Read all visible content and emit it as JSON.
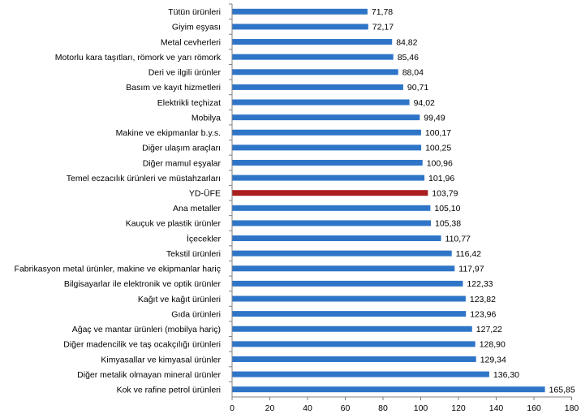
{
  "chart_data": {
    "type": "bar",
    "orientation": "horizontal",
    "categories": [
      "Tütün ürünleri",
      "Giyim eşyası",
      "Metal cevherleri",
      "Motorlu kara taşıtları, römork ve yarı römork",
      "Deri ve ilgili ürünler",
      "Basım ve kayıt hizmetleri",
      "Elektrikli teçhizat",
      "Mobilya",
      "Makine ve ekipmanlar b.y.s.",
      "Diğer ulaşım araçları",
      "Diğer mamul eşyalar",
      "Temel eczacılık ürünleri ve müstahzarları",
      "YD-ÜFE",
      "Ana metaller",
      "Kauçuk ve plastik ürünler",
      "İçecekler",
      "Tekstil ürünleri",
      "Fabrikasyon metal ürünler, makine ve ekipmanlar hariç",
      "Bilgisayarlar ile elektronik ve optik ürünler",
      "Kağıt ve kağıt ürünleri",
      "Gıda ürünleri",
      "Ağaç ve mantar ürünleri (mobilya hariç)",
      "Diğer madencilik ve taş ocakçılığı ürünleri",
      "Kimyasallar ve kimyasal ürünler",
      "Diğer metalik olmayan mineral ürünler",
      "Kok ve rafine petrol ürünleri"
    ],
    "values": [
      71.78,
      72.17,
      84.82,
      85.46,
      88.04,
      90.71,
      94.02,
      99.49,
      100.17,
      100.25,
      100.96,
      101.96,
      103.79,
      105.1,
      105.38,
      110.77,
      116.42,
      117.97,
      122.33,
      123.82,
      123.96,
      127.22,
      128.9,
      129.34,
      136.3,
      165.85
    ],
    "value_labels": [
      "71,78",
      "72,17",
      "84,82",
      "85,46",
      "88,04",
      "90,71",
      "94,02",
      "99,49",
      "100,17",
      "100,25",
      "100,96",
      "101,96",
      "103,79",
      "105,10",
      "105,38",
      "110,77",
      "116,42",
      "117,97",
      "122,33",
      "123,82",
      "123,96",
      "127,22",
      "128,90",
      "129,34",
      "136,30",
      "165,85"
    ],
    "highlight_category": "YD-ÜFE",
    "xlim": [
      0,
      180
    ],
    "xticks": [
      0,
      20,
      40,
      60,
      80,
      100,
      120,
      140,
      160,
      180
    ],
    "grid": false,
    "legend": "none",
    "title": "",
    "xlabel": "",
    "ylabel": ""
  },
  "colors": {
    "bar": "#2E75C8",
    "highlight": "#AA1E1E",
    "axis": "#808080"
  }
}
